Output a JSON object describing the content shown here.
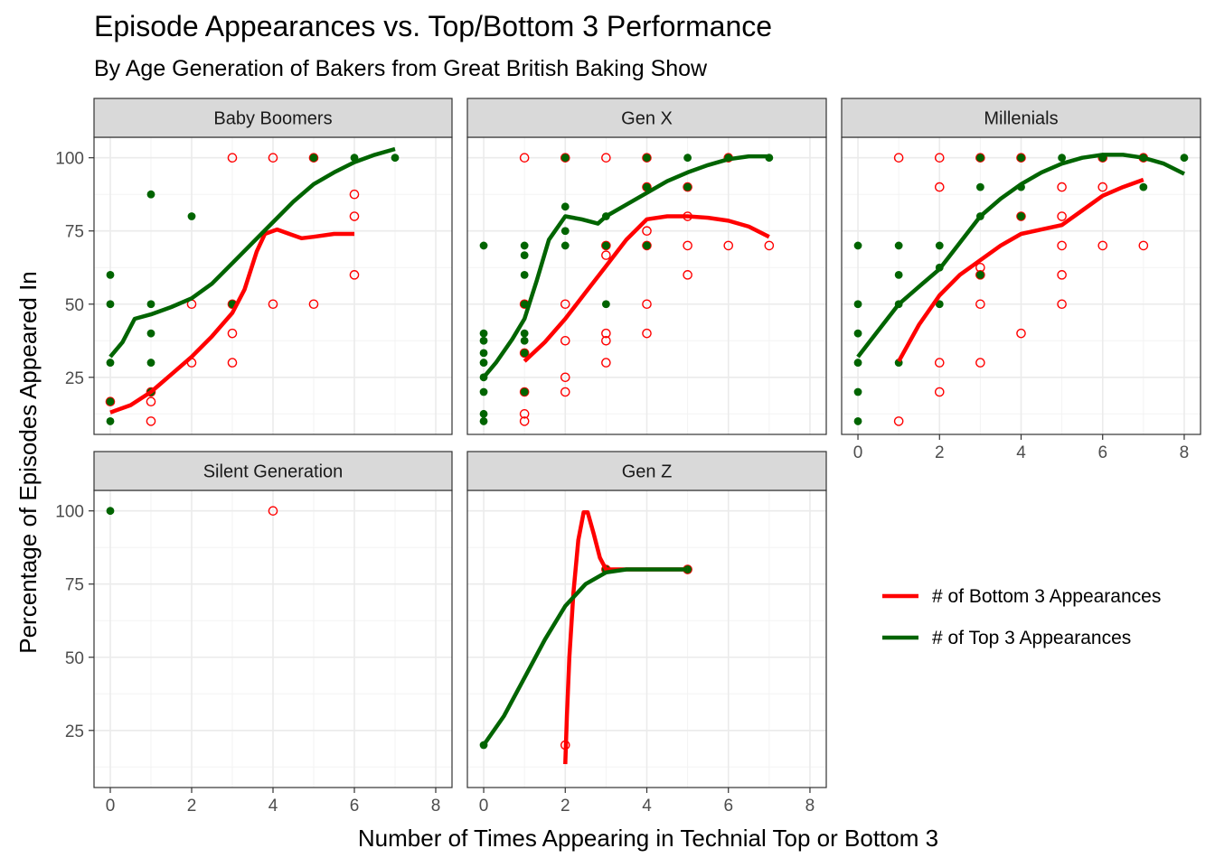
{
  "chart_data": {
    "type": "scatter",
    "title": "Episode Appearances vs. Top/Bottom 3 Performance",
    "subtitle": "By Age Generation of Bakers from Great British Baking Show",
    "xlabel": "Number of Times Appearing in Technial Top or Bottom 3",
    "ylabel": "Percentage of Episodes Appeared In",
    "xlim": [
      -0.4,
      8.4
    ],
    "ylim": [
      5.5,
      107
    ],
    "x_ticks": [
      0,
      2,
      4,
      6,
      8
    ],
    "x_tick_labels": [
      "0",
      "2",
      "4",
      "6",
      "8"
    ],
    "y_ticks": [
      25,
      50,
      75,
      100
    ],
    "y_tick_labels": [
      "25",
      "50",
      "75",
      "100"
    ],
    "grid": true,
    "legend_position": "right",
    "legend": [
      {
        "key": "bottom",
        "label": "# of Bottom 3 Appearances",
        "color": "#ff0000"
      },
      {
        "key": "top",
        "label": "# of Top 3 Appearances",
        "color": "#006400"
      }
    ],
    "colors": {
      "bottom": "#ff0000",
      "top": "#006400",
      "strip_fill": "#d9d9d9",
      "grid": "#ebebeb",
      "border": "#333333"
    },
    "panels": [
      {
        "label": "Baby Boomers",
        "bottom_points": [
          [
            0,
            16.7
          ],
          [
            1,
            10
          ],
          [
            1,
            16.7
          ],
          [
            1,
            20
          ],
          [
            2,
            30
          ],
          [
            2,
            50
          ],
          [
            3,
            30
          ],
          [
            3,
            40
          ],
          [
            3,
            50
          ],
          [
            3,
            100
          ],
          [
            4,
            50
          ],
          [
            4,
            100
          ],
          [
            5,
            50
          ],
          [
            5,
            100
          ],
          [
            6,
            60
          ],
          [
            6,
            80
          ],
          [
            6,
            87.5
          ]
        ],
        "top_points": [
          [
            0,
            10
          ],
          [
            0,
            16.7
          ],
          [
            0,
            30
          ],
          [
            0,
            50
          ],
          [
            0,
            60
          ],
          [
            1,
            20
          ],
          [
            1,
            30
          ],
          [
            1,
            40
          ],
          [
            1,
            50
          ],
          [
            1,
            87.5
          ],
          [
            2,
            80
          ],
          [
            3,
            50
          ],
          [
            5,
            100
          ],
          [
            6,
            100
          ],
          [
            7,
            100
          ]
        ],
        "bottom_smooth": [
          [
            0,
            13
          ],
          [
            0.5,
            15.5
          ],
          [
            1,
            20
          ],
          [
            1.5,
            26
          ],
          [
            2,
            32
          ],
          [
            2.5,
            39
          ],
          [
            3,
            47
          ],
          [
            3.3,
            55
          ],
          [
            3.6,
            68
          ],
          [
            3.8,
            74
          ],
          [
            4.1,
            75.5
          ],
          [
            4.4,
            74
          ],
          [
            4.7,
            72.5
          ],
          [
            5,
            73
          ],
          [
            5.5,
            74
          ],
          [
            6,
            74
          ]
        ],
        "top_smooth": [
          [
            0,
            32
          ],
          [
            0.3,
            37
          ],
          [
            0.6,
            45
          ],
          [
            1,
            46.5
          ],
          [
            1.5,
            49
          ],
          [
            2,
            52
          ],
          [
            2.5,
            57
          ],
          [
            3,
            64
          ],
          [
            3.5,
            71
          ],
          [
            4,
            78
          ],
          [
            4.5,
            85
          ],
          [
            5,
            91
          ],
          [
            5.5,
            95
          ],
          [
            6,
            98.5
          ],
          [
            6.5,
            101
          ],
          [
            7,
            103
          ]
        ]
      },
      {
        "label": "Gen X",
        "bottom_points": [
          [
            1,
            10
          ],
          [
            1,
            12.5
          ],
          [
            1,
            20
          ],
          [
            1,
            33.3
          ],
          [
            1,
            50
          ],
          [
            1,
            100
          ],
          [
            2,
            20
          ],
          [
            2,
            25
          ],
          [
            2,
            37.5
          ],
          [
            2,
            50
          ],
          [
            2,
            100
          ],
          [
            3,
            30
          ],
          [
            3,
            37.5
          ],
          [
            3,
            40
          ],
          [
            3,
            66.7
          ],
          [
            3,
            70
          ],
          [
            3,
            100
          ],
          [
            4,
            40
          ],
          [
            4,
            50
          ],
          [
            4,
            70
          ],
          [
            4,
            75
          ],
          [
            4,
            90
          ],
          [
            4,
            100
          ],
          [
            5,
            60
          ],
          [
            5,
            70
          ],
          [
            5,
            80
          ],
          [
            5,
            90
          ],
          [
            6,
            70
          ],
          [
            6,
            100
          ],
          [
            7,
            70
          ]
        ],
        "top_points": [
          [
            0,
            10
          ],
          [
            0,
            12.5
          ],
          [
            0,
            20
          ],
          [
            0,
            25
          ],
          [
            0,
            30
          ],
          [
            0,
            33.3
          ],
          [
            0,
            37.5
          ],
          [
            0,
            40
          ],
          [
            0,
            70
          ],
          [
            1,
            20
          ],
          [
            1,
            33.3
          ],
          [
            1,
            37.5
          ],
          [
            1,
            40
          ],
          [
            1,
            50
          ],
          [
            1,
            60
          ],
          [
            1,
            66.7
          ],
          [
            1,
            70
          ],
          [
            2,
            70
          ],
          [
            2,
            75
          ],
          [
            2,
            83.3
          ],
          [
            2,
            100
          ],
          [
            3,
            50
          ],
          [
            3,
            70
          ],
          [
            3,
            80
          ],
          [
            4,
            70
          ],
          [
            4,
            90
          ],
          [
            4,
            100
          ],
          [
            5,
            90
          ],
          [
            5,
            100
          ],
          [
            6,
            100
          ],
          [
            7,
            100
          ]
        ],
        "bottom_smooth": [
          [
            1,
            30.5
          ],
          [
            1.5,
            37
          ],
          [
            2,
            45
          ],
          [
            2.5,
            54
          ],
          [
            3,
            63
          ],
          [
            3.5,
            72
          ],
          [
            4,
            79
          ],
          [
            4.5,
            80
          ],
          [
            5,
            80
          ],
          [
            5.5,
            79.5
          ],
          [
            6,
            78.5
          ],
          [
            6.5,
            76.5
          ],
          [
            7,
            73
          ]
        ],
        "top_smooth": [
          [
            0,
            25
          ],
          [
            0.3,
            30
          ],
          [
            0.7,
            38
          ],
          [
            1,
            45
          ],
          [
            1.3,
            58
          ],
          [
            1.6,
            72
          ],
          [
            2,
            80
          ],
          [
            2.4,
            79
          ],
          [
            2.8,
            77.5
          ],
          [
            3,
            80
          ],
          [
            3.5,
            84
          ],
          [
            4,
            88
          ],
          [
            4.5,
            92
          ],
          [
            5,
            95
          ],
          [
            5.5,
            97.5
          ],
          [
            6,
            99.5
          ],
          [
            6.5,
            100.5
          ],
          [
            7,
            100.5
          ]
        ]
      },
      {
        "label": "Millenials",
        "bottom_points": [
          [
            1,
            10
          ],
          [
            1,
            100
          ],
          [
            2,
            20
          ],
          [
            2,
            30
          ],
          [
            2,
            90
          ],
          [
            2,
            100
          ],
          [
            3,
            30
          ],
          [
            3,
            50
          ],
          [
            3,
            60
          ],
          [
            3,
            62.5
          ],
          [
            3,
            100
          ],
          [
            4,
            40
          ],
          [
            4,
            80
          ],
          [
            4,
            100
          ],
          [
            5,
            50
          ],
          [
            5,
            60
          ],
          [
            5,
            70
          ],
          [
            5,
            80
          ],
          [
            5,
            90
          ],
          [
            6,
            70
          ],
          [
            6,
            90
          ],
          [
            6,
            100
          ],
          [
            7,
            70
          ],
          [
            7,
            100
          ]
        ],
        "top_points": [
          [
            0,
            10
          ],
          [
            0,
            20
          ],
          [
            0,
            30
          ],
          [
            0,
            40
          ],
          [
            0,
            50
          ],
          [
            0,
            70
          ],
          [
            1,
            30
          ],
          [
            1,
            50
          ],
          [
            1,
            60
          ],
          [
            1,
            70
          ],
          [
            2,
            50
          ],
          [
            2,
            62.5
          ],
          [
            2,
            70
          ],
          [
            3,
            60
          ],
          [
            3,
            80
          ],
          [
            3,
            90
          ],
          [
            3,
            100
          ],
          [
            4,
            80
          ],
          [
            4,
            90
          ],
          [
            4,
            100
          ],
          [
            5,
            100
          ],
          [
            6,
            100
          ],
          [
            7,
            90
          ],
          [
            7,
            100
          ],
          [
            8,
            100
          ]
        ],
        "bottom_smooth": [
          [
            1,
            30.5
          ],
          [
            1.5,
            43
          ],
          [
            2,
            53
          ],
          [
            2.5,
            60
          ],
          [
            3,
            65
          ],
          [
            3.5,
            70
          ],
          [
            4,
            74
          ],
          [
            4.5,
            75.5
          ],
          [
            5,
            77
          ],
          [
            5.5,
            82
          ],
          [
            6,
            87
          ],
          [
            6.5,
            90
          ],
          [
            7,
            92.5
          ]
        ],
        "top_smooth": [
          [
            0,
            32
          ],
          [
            0.5,
            41
          ],
          [
            1,
            50
          ],
          [
            1.5,
            56
          ],
          [
            2,
            62
          ],
          [
            2.5,
            71
          ],
          [
            3,
            80
          ],
          [
            3.5,
            86
          ],
          [
            4,
            91
          ],
          [
            4.5,
            95
          ],
          [
            5,
            98
          ],
          [
            5.5,
            100
          ],
          [
            6,
            101
          ],
          [
            6.5,
            101
          ],
          [
            7,
            100
          ],
          [
            7.5,
            98
          ],
          [
            8,
            94.5
          ]
        ]
      },
      {
        "label": "Silent Generation",
        "bottom_points": [
          [
            4,
            100
          ]
        ],
        "top_points": [
          [
            0,
            100
          ]
        ],
        "bottom_smooth": [],
        "top_smooth": []
      },
      {
        "label": "Gen Z",
        "bottom_points": [
          [
            2,
            20
          ],
          [
            3,
            80
          ],
          [
            5,
            80
          ]
        ],
        "top_points": [
          [
            0,
            20
          ],
          [
            3,
            80
          ],
          [
            5,
            80
          ]
        ],
        "bottom_smooth": [
          [
            2,
            13.5
          ],
          [
            2.04,
            30
          ],
          [
            2.1,
            50
          ],
          [
            2.2,
            72
          ],
          [
            2.32,
            90
          ],
          [
            2.45,
            99.5
          ],
          [
            2.55,
            99.5
          ],
          [
            2.7,
            92
          ],
          [
            2.85,
            84
          ],
          [
            3,
            80
          ],
          [
            4,
            80
          ],
          [
            5,
            80
          ]
        ],
        "top_smooth": [
          [
            0,
            20
          ],
          [
            0.5,
            30
          ],
          [
            1,
            43
          ],
          [
            1.5,
            56
          ],
          [
            2,
            67.5
          ],
          [
            2.5,
            75
          ],
          [
            3,
            79
          ],
          [
            3.5,
            80
          ],
          [
            4,
            80
          ],
          [
            4.5,
            80
          ],
          [
            5,
            80
          ]
        ]
      }
    ]
  }
}
